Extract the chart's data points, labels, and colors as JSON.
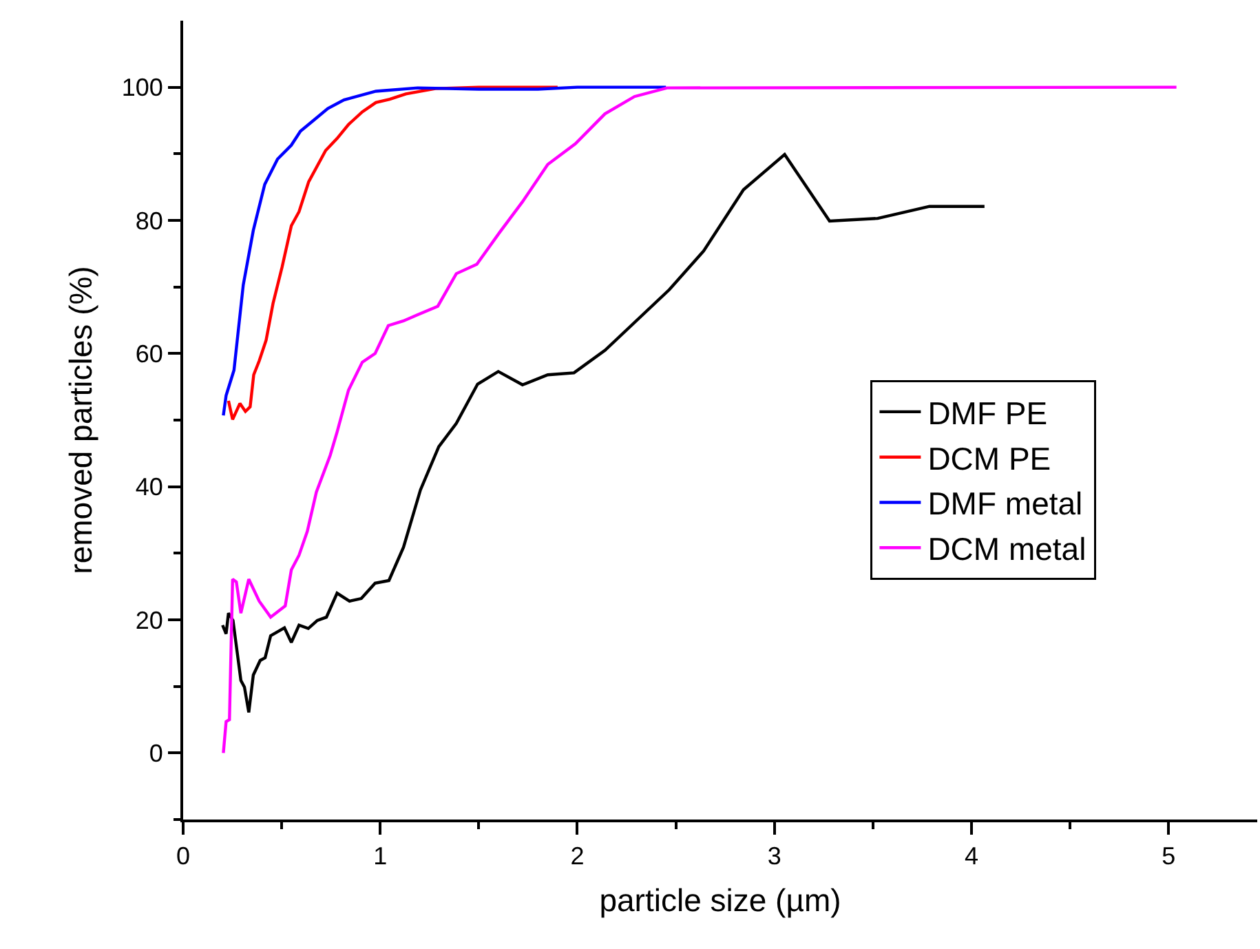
{
  "chart_data": {
    "type": "line",
    "xlabel": "particle size (µm)",
    "ylabel": "removed particles (%)",
    "xlim": [
      0,
      5.45
    ],
    "ylim": [
      -10,
      110
    ],
    "xticks": [
      0,
      {
        "value": 0.5,
        "label": null
      },
      1,
      {
        "value": 1.5,
        "label": null
      },
      2,
      {
        "value": 2.5,
        "label": null
      },
      3,
      {
        "value": 3.5,
        "label": null
      },
      4,
      {
        "value": 4.5,
        "label": null
      },
      5
    ],
    "yticks": [
      {
        "value": -10,
        "label": null
      },
      0,
      {
        "value": 10,
        "label": null
      },
      20,
      {
        "value": 30,
        "label": null
      },
      40,
      {
        "value": 50,
        "label": null
      },
      60,
      {
        "value": 70,
        "label": null
      },
      80,
      {
        "value": 90,
        "label": null
      },
      100
    ],
    "grid": false,
    "legend": "right",
    "line_style": "solid",
    "marker": "none",
    "series": [
      {
        "name": "DMF PE",
        "color": "#000000",
        "x": [
          0.2,
          0.218,
          0.23,
          0.253,
          0.293,
          0.311,
          0.333,
          0.356,
          0.391,
          0.416,
          0.444,
          0.479,
          0.514,
          0.549,
          0.588,
          0.635,
          0.681,
          0.727,
          0.781,
          0.844,
          0.904,
          0.974,
          1.044,
          1.118,
          1.204,
          1.297,
          1.386,
          1.494,
          1.599,
          1.722,
          1.85,
          1.983,
          2.141,
          2.467,
          2.641,
          2.843,
          3.052,
          3.28,
          3.524,
          3.787,
          4.066
        ],
        "values": [
          19.2,
          17.9,
          21.0,
          19.9,
          10.9,
          9.9,
          6.1,
          11.7,
          13.9,
          14.3,
          17.6,
          18.2,
          18.8,
          16.6,
          19.2,
          18.7,
          19.9,
          20.4,
          24.0,
          22.8,
          23.2,
          25.5,
          25.9,
          30.9,
          39.5,
          46.0,
          49.5,
          55.4,
          57.3,
          55.3,
          56.8,
          57.1,
          60.5,
          69.6,
          75.4,
          84.6,
          89.9,
          79.9,
          80.3,
          82.1,
          82.1
        ]
      },
      {
        "name": "DCM PE",
        "color": "#ff0000",
        "x": [
          0.23,
          0.251,
          0.288,
          0.316,
          0.34,
          0.358,
          0.386,
          0.421,
          0.456,
          0.502,
          0.549,
          0.588,
          0.637,
          0.723,
          0.781,
          0.839,
          0.909,
          0.978,
          1.048,
          1.13,
          1.28,
          1.5,
          1.9
        ],
        "values": [
          52.9,
          50.1,
          52.5,
          51.3,
          52.0,
          56.8,
          58.9,
          62.0,
          67.5,
          73.0,
          79.2,
          81.3,
          85.8,
          90.5,
          92.3,
          94.4,
          96.3,
          97.7,
          98.2,
          99.0,
          99.8,
          100,
          100
        ]
      },
      {
        "name": "DMF metal",
        "color": "#0000ff",
        "x": [
          0.204,
          0.218,
          0.258,
          0.305,
          0.356,
          0.414,
          0.479,
          0.549,
          0.595,
          0.665,
          0.734,
          0.816,
          0.978,
          1.19,
          1.5,
          1.8,
          2.0,
          2.45
        ],
        "values": [
          50.7,
          53.7,
          57.5,
          70.3,
          78.5,
          85.4,
          89.2,
          91.3,
          93.4,
          95.1,
          96.8,
          98.1,
          99.4,
          99.9,
          99.7,
          99.7,
          100,
          100
        ]
      },
      {
        "name": "DCM metal",
        "color": "#ff00ff",
        "x": [
          0.204,
          0.218,
          0.235,
          0.251,
          0.27,
          0.293,
          0.333,
          0.386,
          0.444,
          0.518,
          0.549,
          0.588,
          0.63,
          0.676,
          0.746,
          0.781,
          0.839,
          0.909,
          0.974,
          1.041,
          1.118,
          1.188,
          1.292,
          1.386,
          1.49,
          1.606,
          1.722,
          1.85,
          1.99,
          2.14,
          2.29,
          2.455,
          5.04
        ],
        "values": [
          0,
          4.7,
          5.0,
          26.1,
          25.7,
          21.0,
          26.1,
          22.8,
          20.4,
          22.1,
          27.5,
          29.7,
          33.3,
          39.2,
          44.7,
          48.2,
          54.5,
          58.7,
          60.0,
          64.2,
          64.9,
          65.8,
          67.1,
          72.0,
          73.4,
          78.2,
          82.8,
          88.4,
          91.5,
          96.0,
          98.6,
          99.9,
          100
        ]
      }
    ]
  }
}
